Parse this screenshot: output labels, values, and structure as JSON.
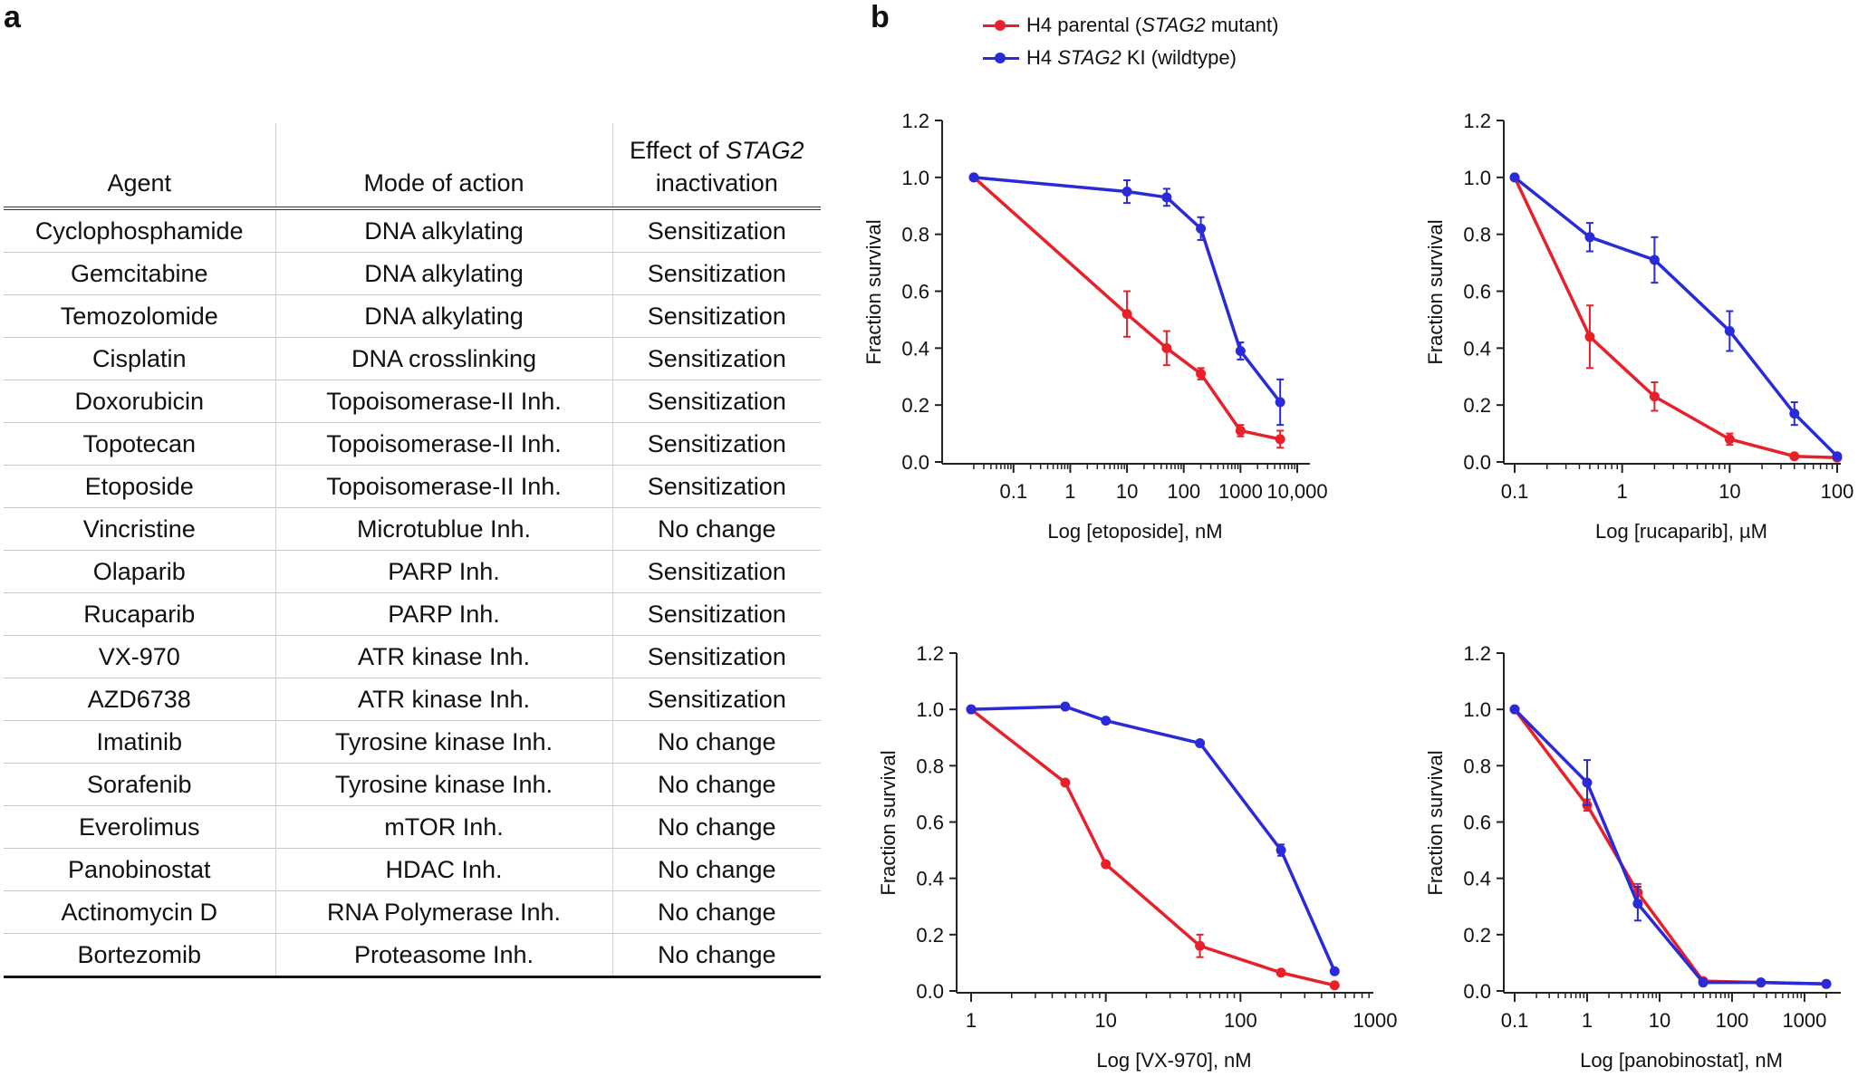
{
  "panel_labels": {
    "a": "a",
    "b": "b"
  },
  "table": {
    "headers": {
      "agent": "Agent",
      "mode": "Mode of action",
      "effect_prefix": "Effect of ",
      "effect_gene": "STAG2",
      "effect_suffix": "inactivation"
    },
    "rows": [
      {
        "agent": "Cyclophosphamide",
        "mode": "DNA alkylating",
        "effect": "Sensitization"
      },
      {
        "agent": "Gemcitabine",
        "mode": "DNA alkylating",
        "effect": "Sensitization"
      },
      {
        "agent": "Temozolomide",
        "mode": "DNA alkylating",
        "effect": "Sensitization"
      },
      {
        "agent": "Cisplatin",
        "mode": "DNA crosslinking",
        "effect": "Sensitization"
      },
      {
        "agent": "Doxorubicin",
        "mode": "Topoisomerase-II Inh.",
        "effect": "Sensitization"
      },
      {
        "agent": "Topotecan",
        "mode": "Topoisomerase-II Inh.",
        "effect": "Sensitization"
      },
      {
        "agent": "Etoposide",
        "mode": "Topoisomerase-II Inh.",
        "effect": "Sensitization"
      },
      {
        "agent": "Vincristine",
        "mode": "Microtublue Inh.",
        "effect": "No change"
      },
      {
        "agent": "Olaparib",
        "mode": "PARP Inh.",
        "effect": "Sensitization"
      },
      {
        "agent": "Rucaparib",
        "mode": "PARP Inh.",
        "effect": "Sensitization"
      },
      {
        "agent": "VX-970",
        "mode": "ATR  kinase Inh.",
        "effect": "Sensitization"
      },
      {
        "agent": "AZD6738",
        "mode": "ATR  kinase Inh.",
        "effect": "Sensitization"
      },
      {
        "agent": "Imatinib",
        "mode": "Tyrosine kinase Inh.",
        "effect": "No change"
      },
      {
        "agent": "Sorafenib",
        "mode": "Tyrosine kinase Inh.",
        "effect": "No change"
      },
      {
        "agent": "Everolimus",
        "mode": "mTOR Inh.",
        "effect": "No change"
      },
      {
        "agent": "Panobinostat",
        "mode": "HDAC Inh.",
        "effect": "No change"
      },
      {
        "agent": "Actinomycin D",
        "mode": "RNA Polymerase Inh.",
        "effect": "No change"
      },
      {
        "agent": "Bortezomib",
        "mode": "Proteasome Inh.",
        "effect": "No change"
      }
    ]
  },
  "legend": {
    "items": [
      {
        "prefix": "H4 parental (",
        "gene": "STAG2",
        "suffix": " mutant)",
        "color": "#e8202a"
      },
      {
        "prefix": "H4 ",
        "gene": "STAG2",
        "suffix": " KI (wildtype)",
        "color": "#2a2ad8"
      }
    ]
  },
  "colors": {
    "parental": "#e8202a",
    "ki": "#2a2ad8",
    "axis": "#222222"
  },
  "chart_data": [
    {
      "type": "line",
      "title": "",
      "xlabel": "Log [etoposide], nM",
      "ylabel": "Fraction survival",
      "xscale": "log",
      "xlim": [
        0.02,
        10000
      ],
      "ylim": [
        0,
        1.2
      ],
      "yticks": [
        0.0,
        0.2,
        0.4,
        0.6,
        0.8,
        1.0,
        1.2
      ],
      "xticks": [
        0.1,
        1,
        10,
        100,
        1000,
        10000
      ],
      "xtick_labels": [
        "0.1",
        "1",
        "10",
        "100",
        "1000",
        "10,000"
      ],
      "series": [
        {
          "name": "H4 parental (STAG2 mutant)",
          "color": "#e8202a",
          "x": [
            0.02,
            10,
            50,
            200,
            1000,
            5000
          ],
          "y": [
            1.0,
            0.52,
            0.4,
            0.31,
            0.11,
            0.08
          ],
          "err": [
            0.0,
            0.08,
            0.06,
            0.02,
            0.02,
            0.03
          ]
        },
        {
          "name": "H4 STAG2 KI (wildtype)",
          "color": "#2a2ad8",
          "x": [
            0.02,
            10,
            50,
            200,
            1000,
            5000
          ],
          "y": [
            1.0,
            0.95,
            0.93,
            0.82,
            0.39,
            0.21
          ],
          "err": [
            0.0,
            0.04,
            0.03,
            0.04,
            0.03,
            0.08
          ]
        }
      ]
    },
    {
      "type": "line",
      "title": "",
      "xlabel": "Log [rucaparib], µM",
      "ylabel": "Fraction survival",
      "xscale": "log",
      "xlim": [
        0.1,
        100
      ],
      "ylim": [
        0,
        1.2
      ],
      "yticks": [
        0.0,
        0.2,
        0.4,
        0.6,
        0.8,
        1.0,
        1.2
      ],
      "xticks": [
        0.1,
        1,
        10,
        100
      ],
      "xtick_labels": [
        "0.1",
        "1",
        "10",
        "100"
      ],
      "series": [
        {
          "name": "H4 parental (STAG2 mutant)",
          "color": "#e8202a",
          "x": [
            0.1,
            0.5,
            2,
            10,
            40,
            100
          ],
          "y": [
            1.0,
            0.44,
            0.23,
            0.08,
            0.02,
            0.015
          ],
          "err": [
            0.0,
            0.11,
            0.05,
            0.02,
            0.0,
            0.0
          ]
        },
        {
          "name": "H4 STAG2 KI (wildtype)",
          "color": "#2a2ad8",
          "x": [
            0.1,
            0.5,
            2,
            10,
            40,
            100
          ],
          "y": [
            1.0,
            0.79,
            0.71,
            0.46,
            0.17,
            0.02
          ],
          "err": [
            0.0,
            0.05,
            0.08,
            0.07,
            0.04,
            0.0
          ]
        }
      ]
    },
    {
      "type": "line",
      "title": "",
      "xlabel": "Log [VX-970], nM",
      "ylabel": "Fraction survival",
      "xscale": "log",
      "xlim": [
        1,
        1000
      ],
      "ylim": [
        0,
        1.2
      ],
      "yticks": [
        0.0,
        0.2,
        0.4,
        0.6,
        0.8,
        1.0,
        1.2
      ],
      "xticks": [
        1,
        10,
        100,
        1000
      ],
      "xtick_labels": [
        "1",
        "10",
        "100",
        "1000"
      ],
      "series": [
        {
          "name": "H4 parental (STAG2 mutant)",
          "color": "#e8202a",
          "x": [
            1,
            5,
            10,
            50,
            200,
            500
          ],
          "y": [
            1.0,
            0.74,
            0.45,
            0.16,
            0.065,
            0.02
          ],
          "err": [
            0.0,
            0.0,
            0.0,
            0.04,
            0.0,
            0.0
          ]
        },
        {
          "name": "H4 STAG2 KI (wildtype)",
          "color": "#2a2ad8",
          "x": [
            1,
            5,
            10,
            50,
            200,
            500
          ],
          "y": [
            1.0,
            1.01,
            0.96,
            0.88,
            0.5,
            0.07
          ],
          "err": [
            0.0,
            0.0,
            0.0,
            0.0,
            0.02,
            0.0
          ]
        }
      ]
    },
    {
      "type": "line",
      "title": "",
      "xlabel": "Log [panobinostat], nM",
      "ylabel": "Fraction survival",
      "xscale": "log",
      "xlim": [
        0.1,
        2000
      ],
      "ylim": [
        0,
        1.2
      ],
      "yticks": [
        0.0,
        0.2,
        0.4,
        0.6,
        0.8,
        1.0,
        1.2
      ],
      "xticks": [
        0.1,
        1,
        10,
        100,
        1000
      ],
      "xtick_labels": [
        "0.1",
        "1",
        "10",
        "100",
        "1000"
      ],
      "series": [
        {
          "name": "H4 parental (STAG2 mutant)",
          "color": "#e8202a",
          "x": [
            0.1,
            1,
            5,
            40,
            250,
            2000
          ],
          "y": [
            1.0,
            0.66,
            0.35,
            0.035,
            0.03,
            0.025
          ],
          "err": [
            0.0,
            0.02,
            0.03,
            0.0,
            0.0,
            0.0
          ]
        },
        {
          "name": "H4 STAG2 KI (wildtype)",
          "color": "#2a2ad8",
          "x": [
            0.1,
            1,
            5,
            40,
            250,
            2000
          ],
          "y": [
            1.0,
            0.74,
            0.31,
            0.03,
            0.03,
            0.025
          ],
          "err": [
            0.0,
            0.08,
            0.06,
            0.0,
            0.0,
            0.0
          ]
        }
      ]
    }
  ]
}
